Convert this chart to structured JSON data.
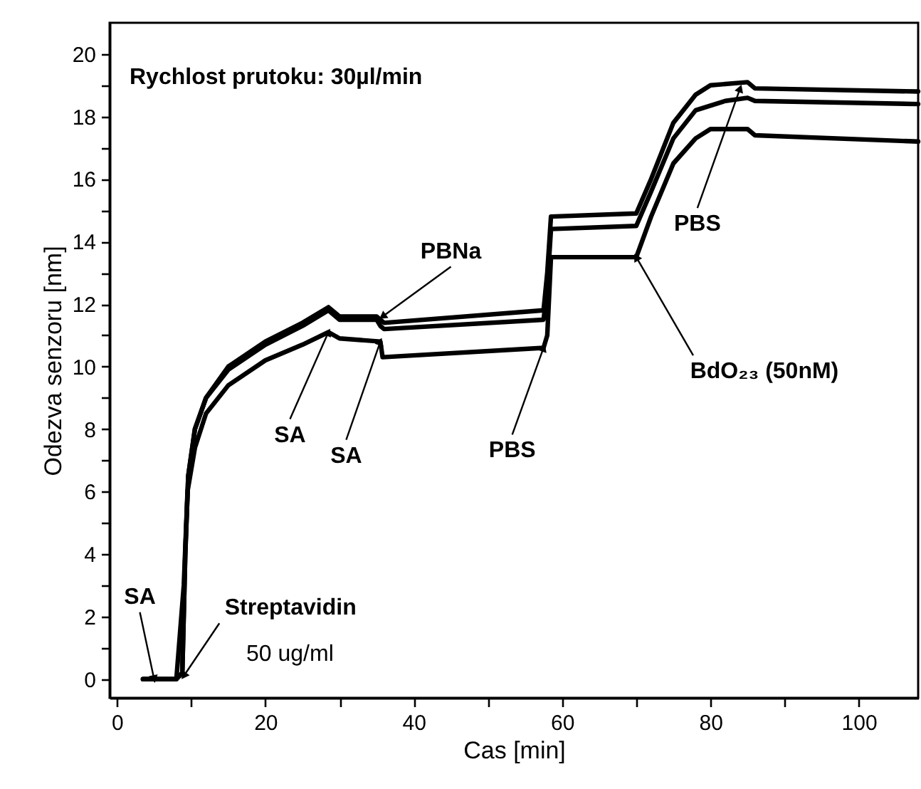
{
  "chart_data": {
    "type": "line",
    "xlabel": "Cas [min]",
    "ylabel": "Odezva senzoru [nm]",
    "xlim": [
      -1,
      108
    ],
    "ylim": [
      -0.6,
      21
    ],
    "xticks": [
      0,
      {
        "value": 10,
        "label": null
      },
      20,
      {
        "value": 30,
        "label": null
      },
      40,
      {
        "value": 50,
        "label": null
      },
      60,
      {
        "value": 70,
        "label": null
      },
      80,
      {
        "value": 90,
        "label": null
      },
      100
    ],
    "yticks": [
      0,
      {
        "value": 1,
        "label": null
      },
      2,
      {
        "value": 3,
        "label": null
      },
      4,
      {
        "value": 5,
        "label": null
      },
      6,
      {
        "value": 7,
        "label": null
      },
      8,
      {
        "value": 9,
        "label": null
      },
      10,
      {
        "value": 11,
        "label": null
      },
      12,
      {
        "value": 13,
        "label": null
      },
      14,
      {
        "value": 15,
        "label": null
      },
      16,
      {
        "value": 17,
        "label": null
      },
      18,
      {
        "value": 19,
        "label": null
      },
      20
    ],
    "grid": false,
    "line_style": "solid",
    "marker": "none",
    "series": [
      {
        "color": "#000000",
        "x": [
          3.5,
          8,
          8.8,
          9.2,
          9.6,
          10.5,
          12,
          15,
          20,
          25,
          28.5,
          30,
          35,
          35.5,
          36,
          57.5,
          58,
          58.5,
          70,
          72,
          75,
          78,
          80,
          85,
          86,
          108
        ],
        "values": [
          0,
          0,
          0.2,
          4,
          6.5,
          8,
          9,
          10,
          10.8,
          11.4,
          11.9,
          11.6,
          11.6,
          11.5,
          11.4,
          11.8,
          13,
          14.8,
          14.9,
          16,
          17.8,
          18.7,
          19,
          19.1,
          18.9,
          18.8
        ]
      },
      {
        "color": "#000000",
        "x": [
          3.5,
          8,
          8.8,
          9.2,
          9.6,
          10.5,
          12,
          15,
          20,
          25,
          28.5,
          30,
          35,
          35.5,
          36,
          57.5,
          58,
          58.5,
          70,
          72,
          75,
          78,
          82,
          85,
          86,
          108
        ],
        "values": [
          0,
          0,
          0.2,
          4,
          6.5,
          8,
          9,
          9.9,
          10.7,
          11.3,
          11.8,
          11.5,
          11.5,
          11.3,
          11.2,
          11.5,
          12.5,
          14.4,
          14.5,
          15.6,
          17.3,
          18.2,
          18.5,
          18.6,
          18.5,
          18.4
        ]
      },
      {
        "color": "#000000",
        "x": [
          3.5,
          8,
          9,
          9.5,
          10.5,
          12,
          15,
          20,
          25,
          28.5,
          30,
          35.5,
          35.8,
          57.5,
          58,
          58.5,
          70,
          72,
          75,
          78,
          80,
          85,
          86,
          108
        ],
        "values": [
          0,
          0,
          3,
          6,
          7.4,
          8.5,
          9.4,
          10.2,
          10.7,
          11.1,
          10.9,
          10.8,
          10.3,
          10.6,
          11,
          13.5,
          13.5,
          14.8,
          16.5,
          17.3,
          17.6,
          17.6,
          17.4,
          17.2
        ]
      }
    ],
    "annotations": [
      "Rychlost prutoku: 30µl/min",
      {
        "text": "SA",
        "x": 5,
        "y": 0
      },
      {
        "text": "Streptavidin",
        "x": 9,
        "y": 0.1
      },
      "50 ug/ml",
      {
        "text": "SA",
        "x": 28.5,
        "y": 11.1
      },
      {
        "text": "SA",
        "x": 35.5,
        "y": 10.8
      },
      {
        "text": "PBNa",
        "x": 35.8,
        "y": 11.6
      },
      {
        "text": "PBS",
        "x": 57.5,
        "y": 10.6
      },
      {
        "text": "BdO₂₃ (50nM)",
        "x": 70,
        "y": 13.5
      },
      {
        "text": "PBS",
        "x": 84,
        "y": 18.9
      }
    ]
  }
}
